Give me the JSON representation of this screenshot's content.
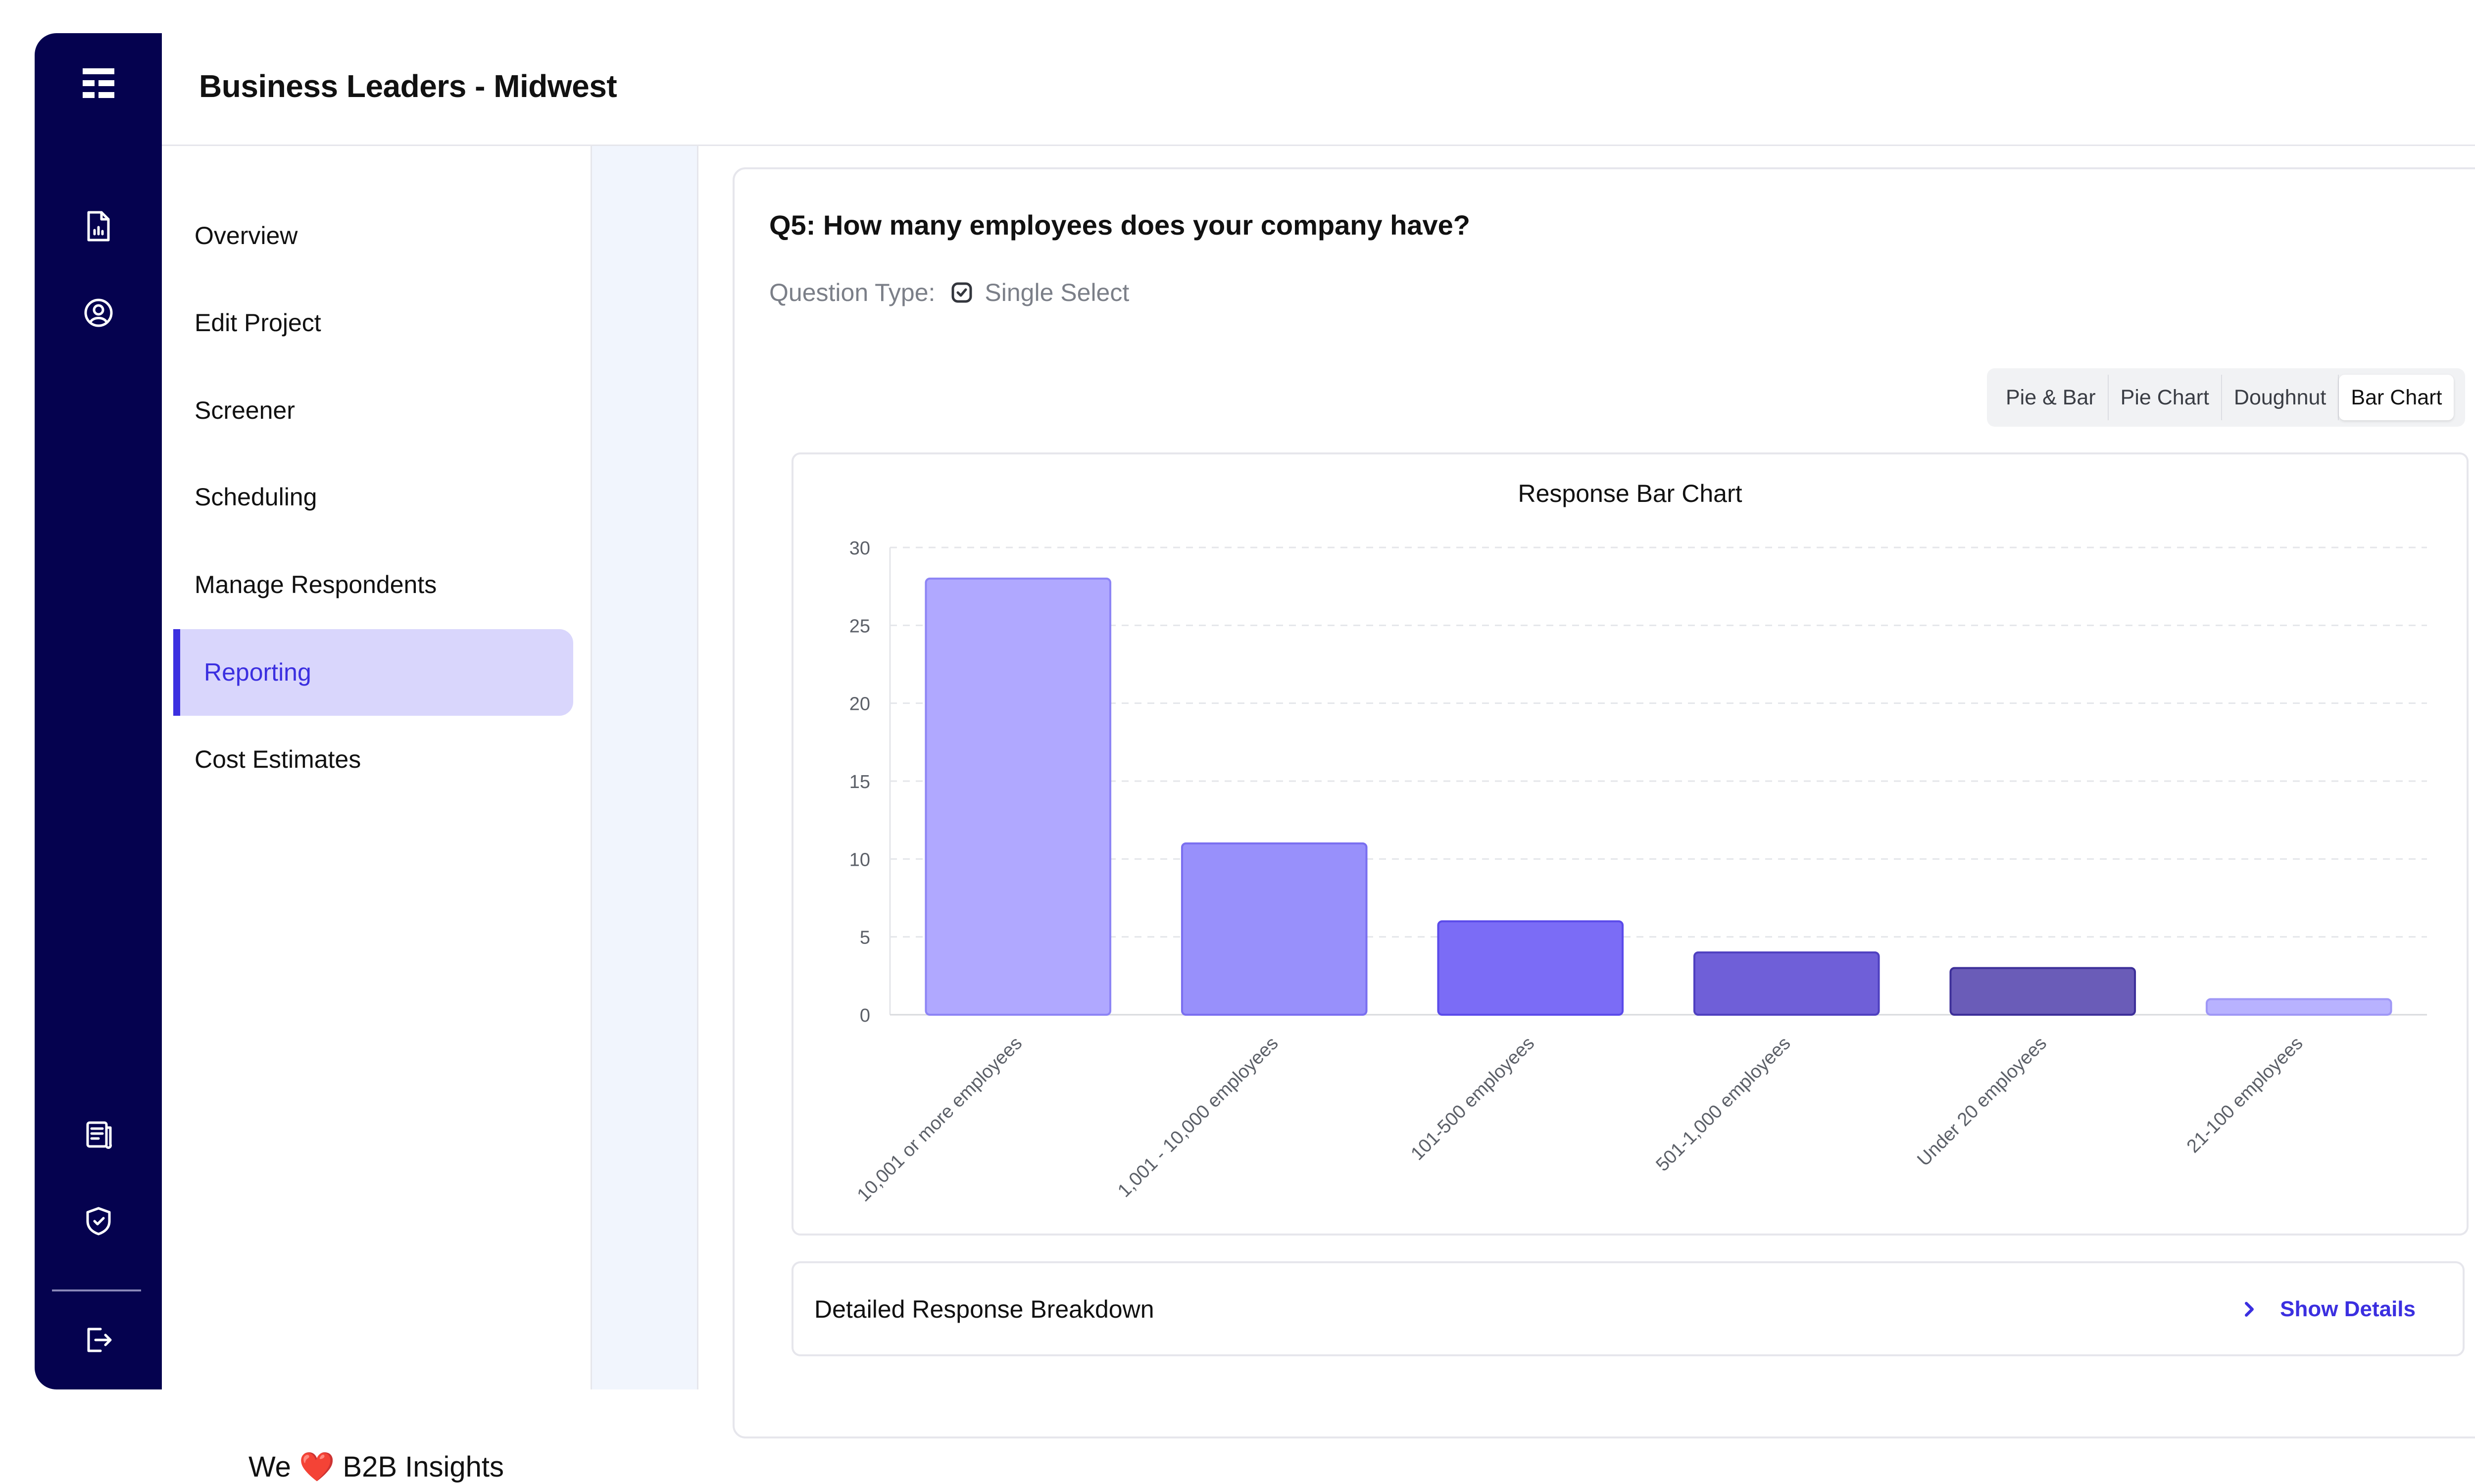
{
  "header": {
    "title": "Business Leaders - Midwest"
  },
  "rail": {
    "icons": [
      "app-grid-icon",
      "report-document-icon",
      "user-circle-icon",
      "notes-icon",
      "shield-icon",
      "logout-icon"
    ]
  },
  "subnav": {
    "items": [
      {
        "label": "Overview"
      },
      {
        "label": "Edit Project"
      },
      {
        "label": "Screener"
      },
      {
        "label": "Scheduling"
      },
      {
        "label": "Manage Respondents"
      },
      {
        "label": "Reporting",
        "active": true
      },
      {
        "label": "Cost Estimates"
      }
    ],
    "tagline_prefix": "We",
    "tagline_heart": "❤️",
    "tagline_suffix": "B2B Insights"
  },
  "question": {
    "title": "Q5: How many employees does your company have?",
    "type_label": "Question Type:",
    "type_value": "Single Select"
  },
  "view_toggle": {
    "options": [
      "Pie & Bar",
      "Pie Chart",
      "Doughnut",
      "Bar Chart"
    ],
    "active": "Bar Chart"
  },
  "chart_data": {
    "type": "bar",
    "title": "Response Bar Chart",
    "categories": [
      "10,001 or more employees",
      "1,001 - 10,000 employees",
      "101-500 employees",
      "501-1,000 employees",
      "Under 20 employees",
      "21-100 employees"
    ],
    "values": [
      28,
      11,
      6,
      4,
      3,
      1
    ],
    "yticks": [
      0,
      5,
      10,
      15,
      20,
      25,
      30
    ],
    "ylim": [
      0,
      30
    ],
    "grid": true,
    "colors": [
      "#b0a8ff",
      "#9890fb",
      "#7b6cf6",
      "#6f5fd8",
      "#6a5cb8",
      "#b8b2ff"
    ],
    "border_colors": [
      "#8d84f5",
      "#7a6ff0",
      "#5b4bea",
      "#4f40c0",
      "#3d2f99",
      "#9f97f6"
    ]
  },
  "breakdown": {
    "title": "Detailed Response Breakdown",
    "action": "Show Details"
  }
}
